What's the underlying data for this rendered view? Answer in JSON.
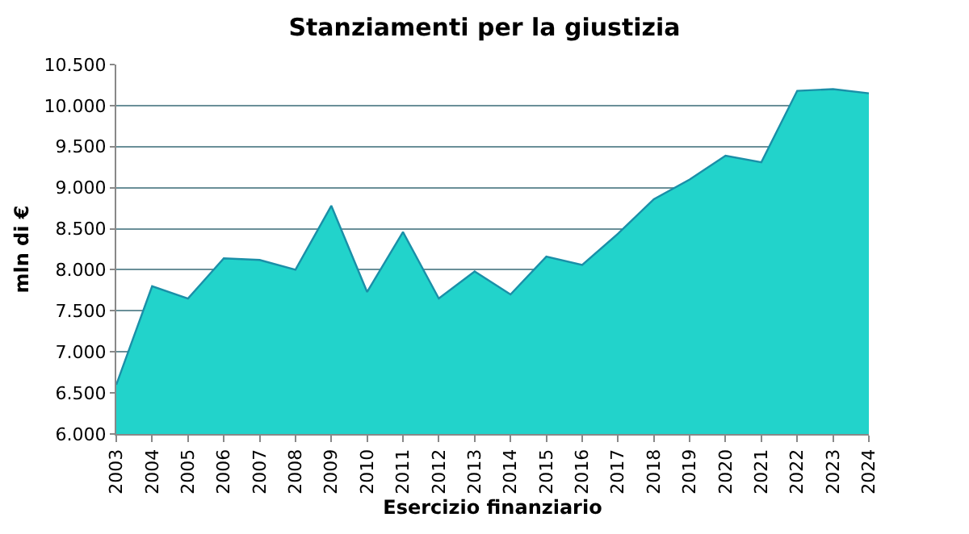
{
  "chart_data": {
    "type": "area",
    "title": "Stanziamenti per la giustizia",
    "xlabel": "Esercizio finanziario",
    "ylabel": "mln di €",
    "categories": [
      "2003",
      "2004",
      "2005",
      "2006",
      "2007",
      "2008",
      "2009",
      "2010",
      "2011",
      "2012",
      "2013",
      "2014",
      "2015",
      "2016",
      "2017",
      "2018",
      "2019",
      "2020",
      "2021",
      "2022",
      "2023",
      "2024"
    ],
    "series": [
      {
        "color": "#22d3cb",
        "values": [
          6600,
          7800,
          7650,
          8140,
          8120,
          8000,
          8780,
          7730,
          8460,
          7650,
          7980,
          7700,
          8160,
          8060,
          8440,
          8860,
          9100,
          9390,
          9310,
          10180,
          10200,
          10150
        ]
      }
    ],
    "ylim": [
      6000,
      10500
    ],
    "yticks": [
      {
        "value": 6000,
        "label": "6.000"
      },
      {
        "value": 6500,
        "label": "6.500"
      },
      {
        "value": 7000,
        "label": "7.000"
      },
      {
        "value": 7500,
        "label": "7.500"
      },
      {
        "value": 8000,
        "label": "8.000"
      },
      {
        "value": 8500,
        "label": "8.500"
      },
      {
        "value": 9000,
        "label": "9.000"
      },
      {
        "value": 9500,
        "label": "9.500"
      },
      {
        "value": 10000,
        "label": "10.000"
      },
      {
        "value": 10500,
        "label": "10.500"
      }
    ],
    "grid": "y"
  }
}
